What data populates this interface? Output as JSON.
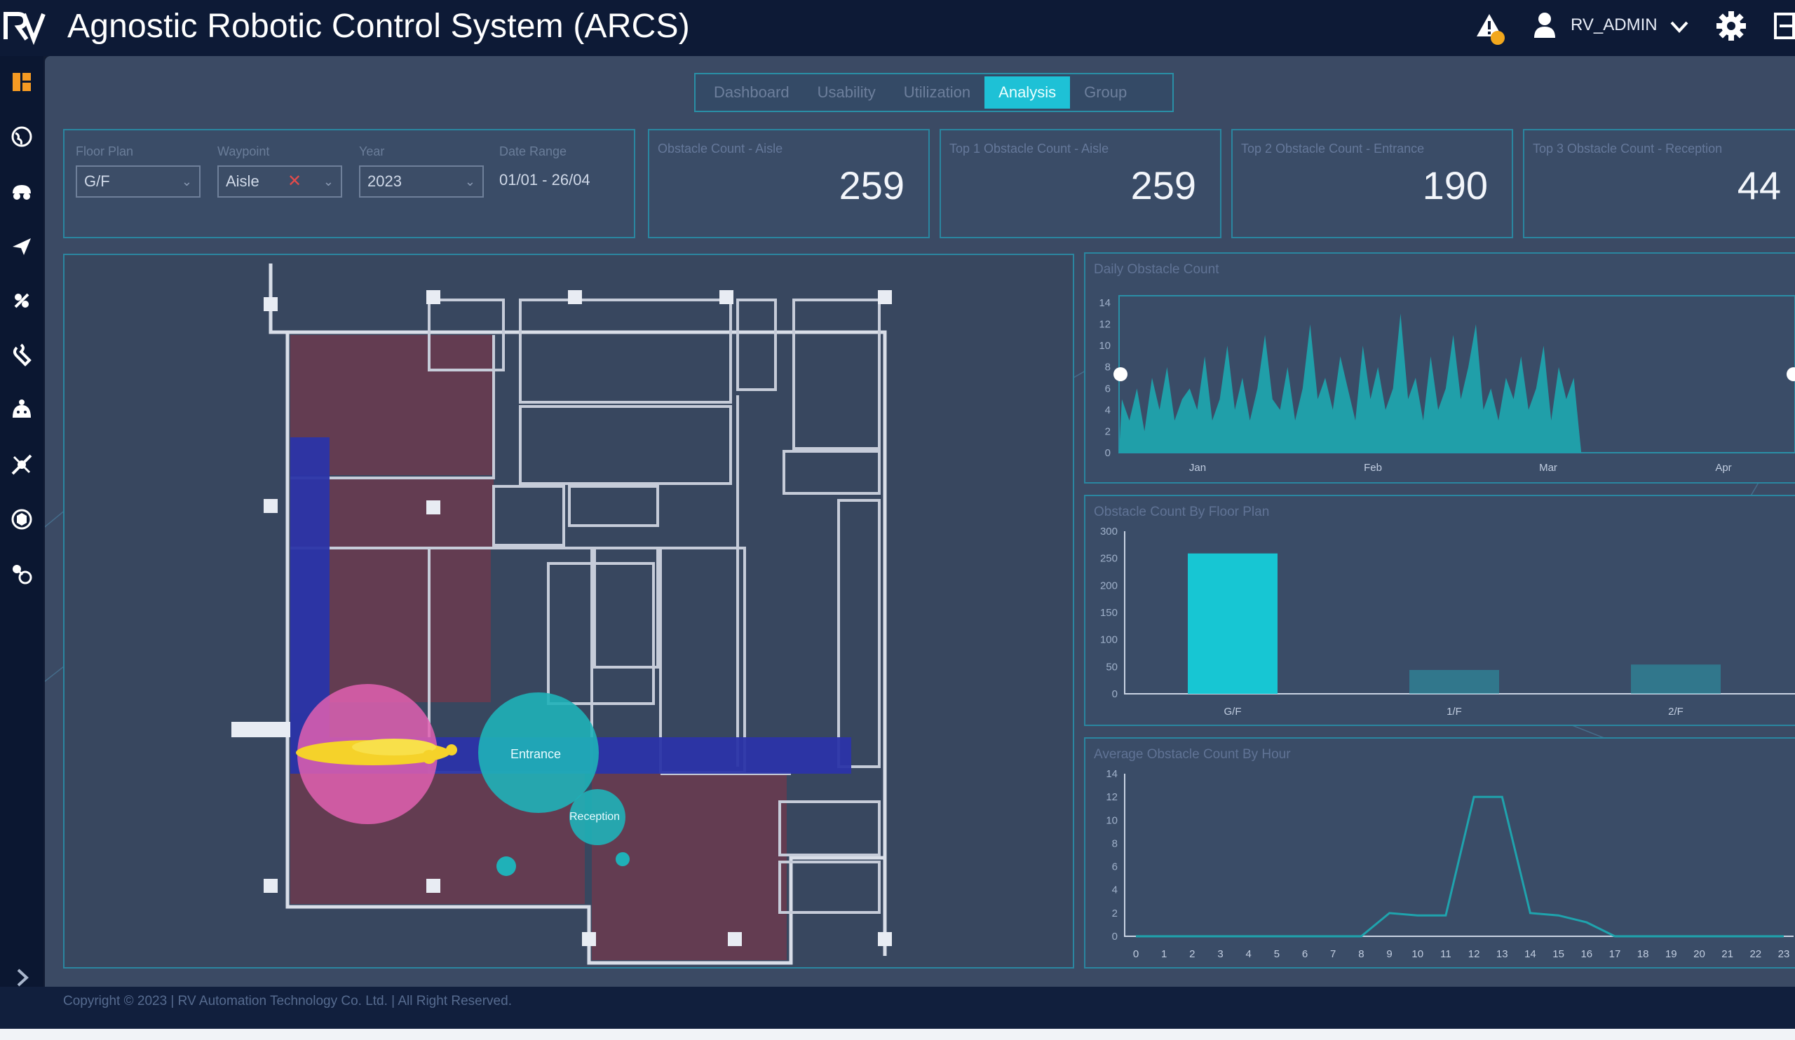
{
  "app": {
    "title": "Agnostic Robotic Control System (ARCS)",
    "user": "RV_ADMIN",
    "logo_text": "RV"
  },
  "colors": {
    "accent": "#1ec1d6",
    "teal_series": "#1fa3ad",
    "bar": "#17c6d3",
    "heat_pink": "#e060b0",
    "heat_teal": "#1fb1b8",
    "heat_yellow": "#f5d22a",
    "corridor": "#2b34a8"
  },
  "header_icons": [
    "alert-icon",
    "user-icon",
    "chevron-down-icon",
    "gear-icon",
    "logout-icon"
  ],
  "sidebar": {
    "items": [
      {
        "icon": "dashboard-icon"
      },
      {
        "icon": "globe-icon"
      },
      {
        "icon": "robot-icon"
      },
      {
        "icon": "send-icon"
      },
      {
        "icon": "satellite-icon"
      },
      {
        "icon": "wrench-icon"
      },
      {
        "icon": "droid-icon"
      },
      {
        "icon": "tools-icon"
      },
      {
        "icon": "cube-icon"
      },
      {
        "icon": "nodes-icon"
      }
    ],
    "expand_icon": "chevron-right-icon"
  },
  "tabs": [
    {
      "label": "Dashboard",
      "active": false
    },
    {
      "label": "Usability",
      "active": false
    },
    {
      "label": "Utilization",
      "active": false
    },
    {
      "label": "Analysis",
      "active": true
    },
    {
      "label": "Group",
      "active": false
    }
  ],
  "filters": {
    "floor_plan": {
      "label": "Floor Plan",
      "value": "G/F"
    },
    "waypoint": {
      "label": "Waypoint",
      "value": "Aisle"
    },
    "year": {
      "label": "Year",
      "value": "2023"
    },
    "date_range": {
      "label": "Date Range",
      "value": "01/01 - 26/04"
    }
  },
  "kpis": [
    {
      "label": "Obstacle Count - Aisle",
      "value": "259"
    },
    {
      "label": "Top 1 Obstacle Count - Aisle",
      "value": "259"
    },
    {
      "label": "Top 2 Obstacle Count - Entrance",
      "value": "190"
    },
    {
      "label": "Top 3 Obstacle Count - Reception",
      "value": "44"
    }
  ],
  "map": {
    "labels": {
      "entrance": "Entrance",
      "reception": "Reception"
    }
  },
  "charts": {
    "daily": {
      "title": "Daily Obstacle Count"
    },
    "by_floor": {
      "title": "Obstacle Count By Floor Plan"
    },
    "by_hour": {
      "title": "Average Obstacle Count By Hour"
    }
  },
  "chart_data": [
    {
      "type": "area",
      "title": "Daily Obstacle Count",
      "x_ticks": [
        "Jan",
        "Feb",
        "Mar",
        "Apr"
      ],
      "y_ticks": [
        "0",
        "2",
        "4",
        "6",
        "8",
        "10",
        "12",
        "14"
      ],
      "ylim": [
        0,
        14
      ],
      "values": [
        5,
        3,
        6,
        2,
        7,
        4,
        8,
        3,
        5,
        6,
        4,
        9,
        3,
        5,
        10,
        4,
        7,
        3,
        6,
        11,
        5,
        4,
        8,
        3,
        6,
        12,
        5,
        7,
        4,
        9,
        6,
        3,
        10,
        5,
        8,
        4,
        6,
        13,
        5,
        7,
        3,
        9,
        4,
        6,
        11,
        5,
        8,
        12,
        4,
        6,
        3,
        7,
        5,
        9,
        4,
        6,
        10,
        3,
        8,
        5,
        7,
        0,
        0,
        0,
        0,
        0,
        0,
        0,
        0,
        0,
        0,
        0,
        0,
        0,
        0,
        0,
        0,
        0,
        0,
        0,
        0,
        0,
        0,
        0,
        0,
        0,
        0,
        0,
        0,
        0
      ]
    },
    {
      "type": "bar",
      "title": "Obstacle Count By Floor Plan",
      "categories": [
        "G/F",
        "1/F",
        "2/F"
      ],
      "values": [
        259,
        44,
        54
      ],
      "y_ticks": [
        "0",
        "50",
        "100",
        "150",
        "200",
        "250",
        "300"
      ],
      "ylim": [
        0,
        300
      ]
    },
    {
      "type": "line",
      "title": "Average Obstacle Count By Hour",
      "categories": [
        "0",
        "1",
        "2",
        "3",
        "4",
        "5",
        "6",
        "7",
        "8",
        "9",
        "10",
        "11",
        "12",
        "13",
        "14",
        "15",
        "16",
        "17",
        "18",
        "19",
        "20",
        "21",
        "22",
        "23"
      ],
      "values": [
        0,
        0,
        0,
        0,
        0,
        0,
        0,
        0,
        0,
        2,
        1.8,
        1.8,
        12,
        12,
        2,
        1.8,
        1.2,
        0,
        0,
        0,
        0,
        0,
        0,
        0
      ],
      "y_ticks": [
        "0",
        "2",
        "4",
        "6",
        "8",
        "10",
        "12",
        "14"
      ],
      "ylim": [
        0,
        14
      ]
    }
  ],
  "footer": {
    "text": "Copyright © 2023 | RV Automation Technology Co. Ltd. | All Right Reserved."
  }
}
